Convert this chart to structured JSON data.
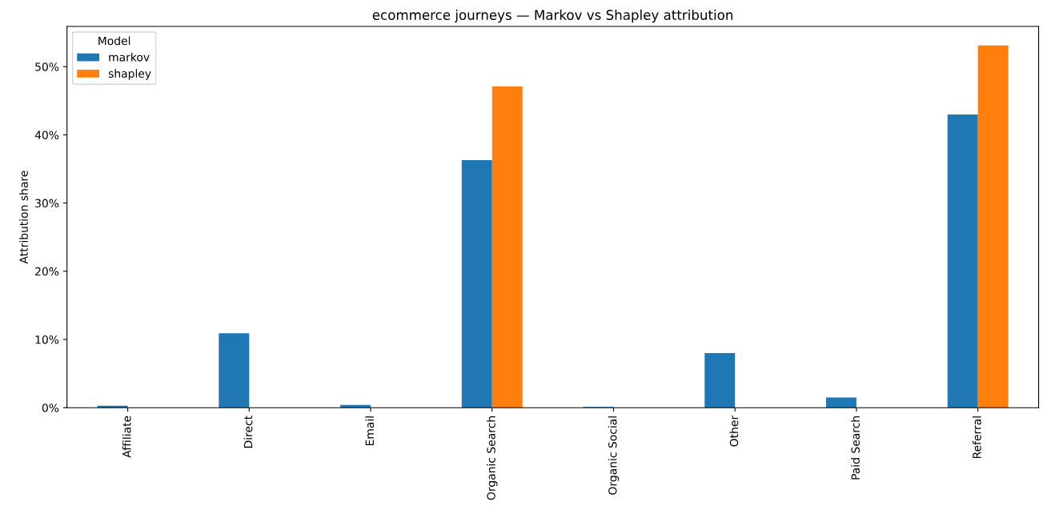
{
  "chart_data": {
    "type": "bar",
    "title": "ecommerce journeys — Markov vs Shapley attribution",
    "ylabel": "Attribution share",
    "legend_title": "Model",
    "legend": "top left",
    "grid": false,
    "categories": [
      "Affiliate",
      "Direct",
      "Email",
      "Organic Search",
      "Organic Social",
      "Other",
      "Paid Search",
      "Referral"
    ],
    "series": [
      {
        "name": "markov",
        "color": "#1f77b4",
        "values": [
          0.3,
          10.9,
          0.4,
          36.3,
          0.1,
          8.0,
          1.5,
          43.0
        ]
      },
      {
        "name": "shapley",
        "color": "#ff7f0e",
        "values": [
          0,
          0,
          0,
          47.1,
          0,
          0,
          0,
          53.1
        ]
      }
    ],
    "ylim": [
      0,
      55.9
    ],
    "yticks": [
      {
        "value": 0,
        "label": "0%"
      },
      {
        "value": 10,
        "label": "10%"
      },
      {
        "value": 20,
        "label": "20%"
      },
      {
        "value": 30,
        "label": "30%"
      },
      {
        "value": 40,
        "label": "40%"
      },
      {
        "value": 50,
        "label": "50%"
      }
    ]
  }
}
